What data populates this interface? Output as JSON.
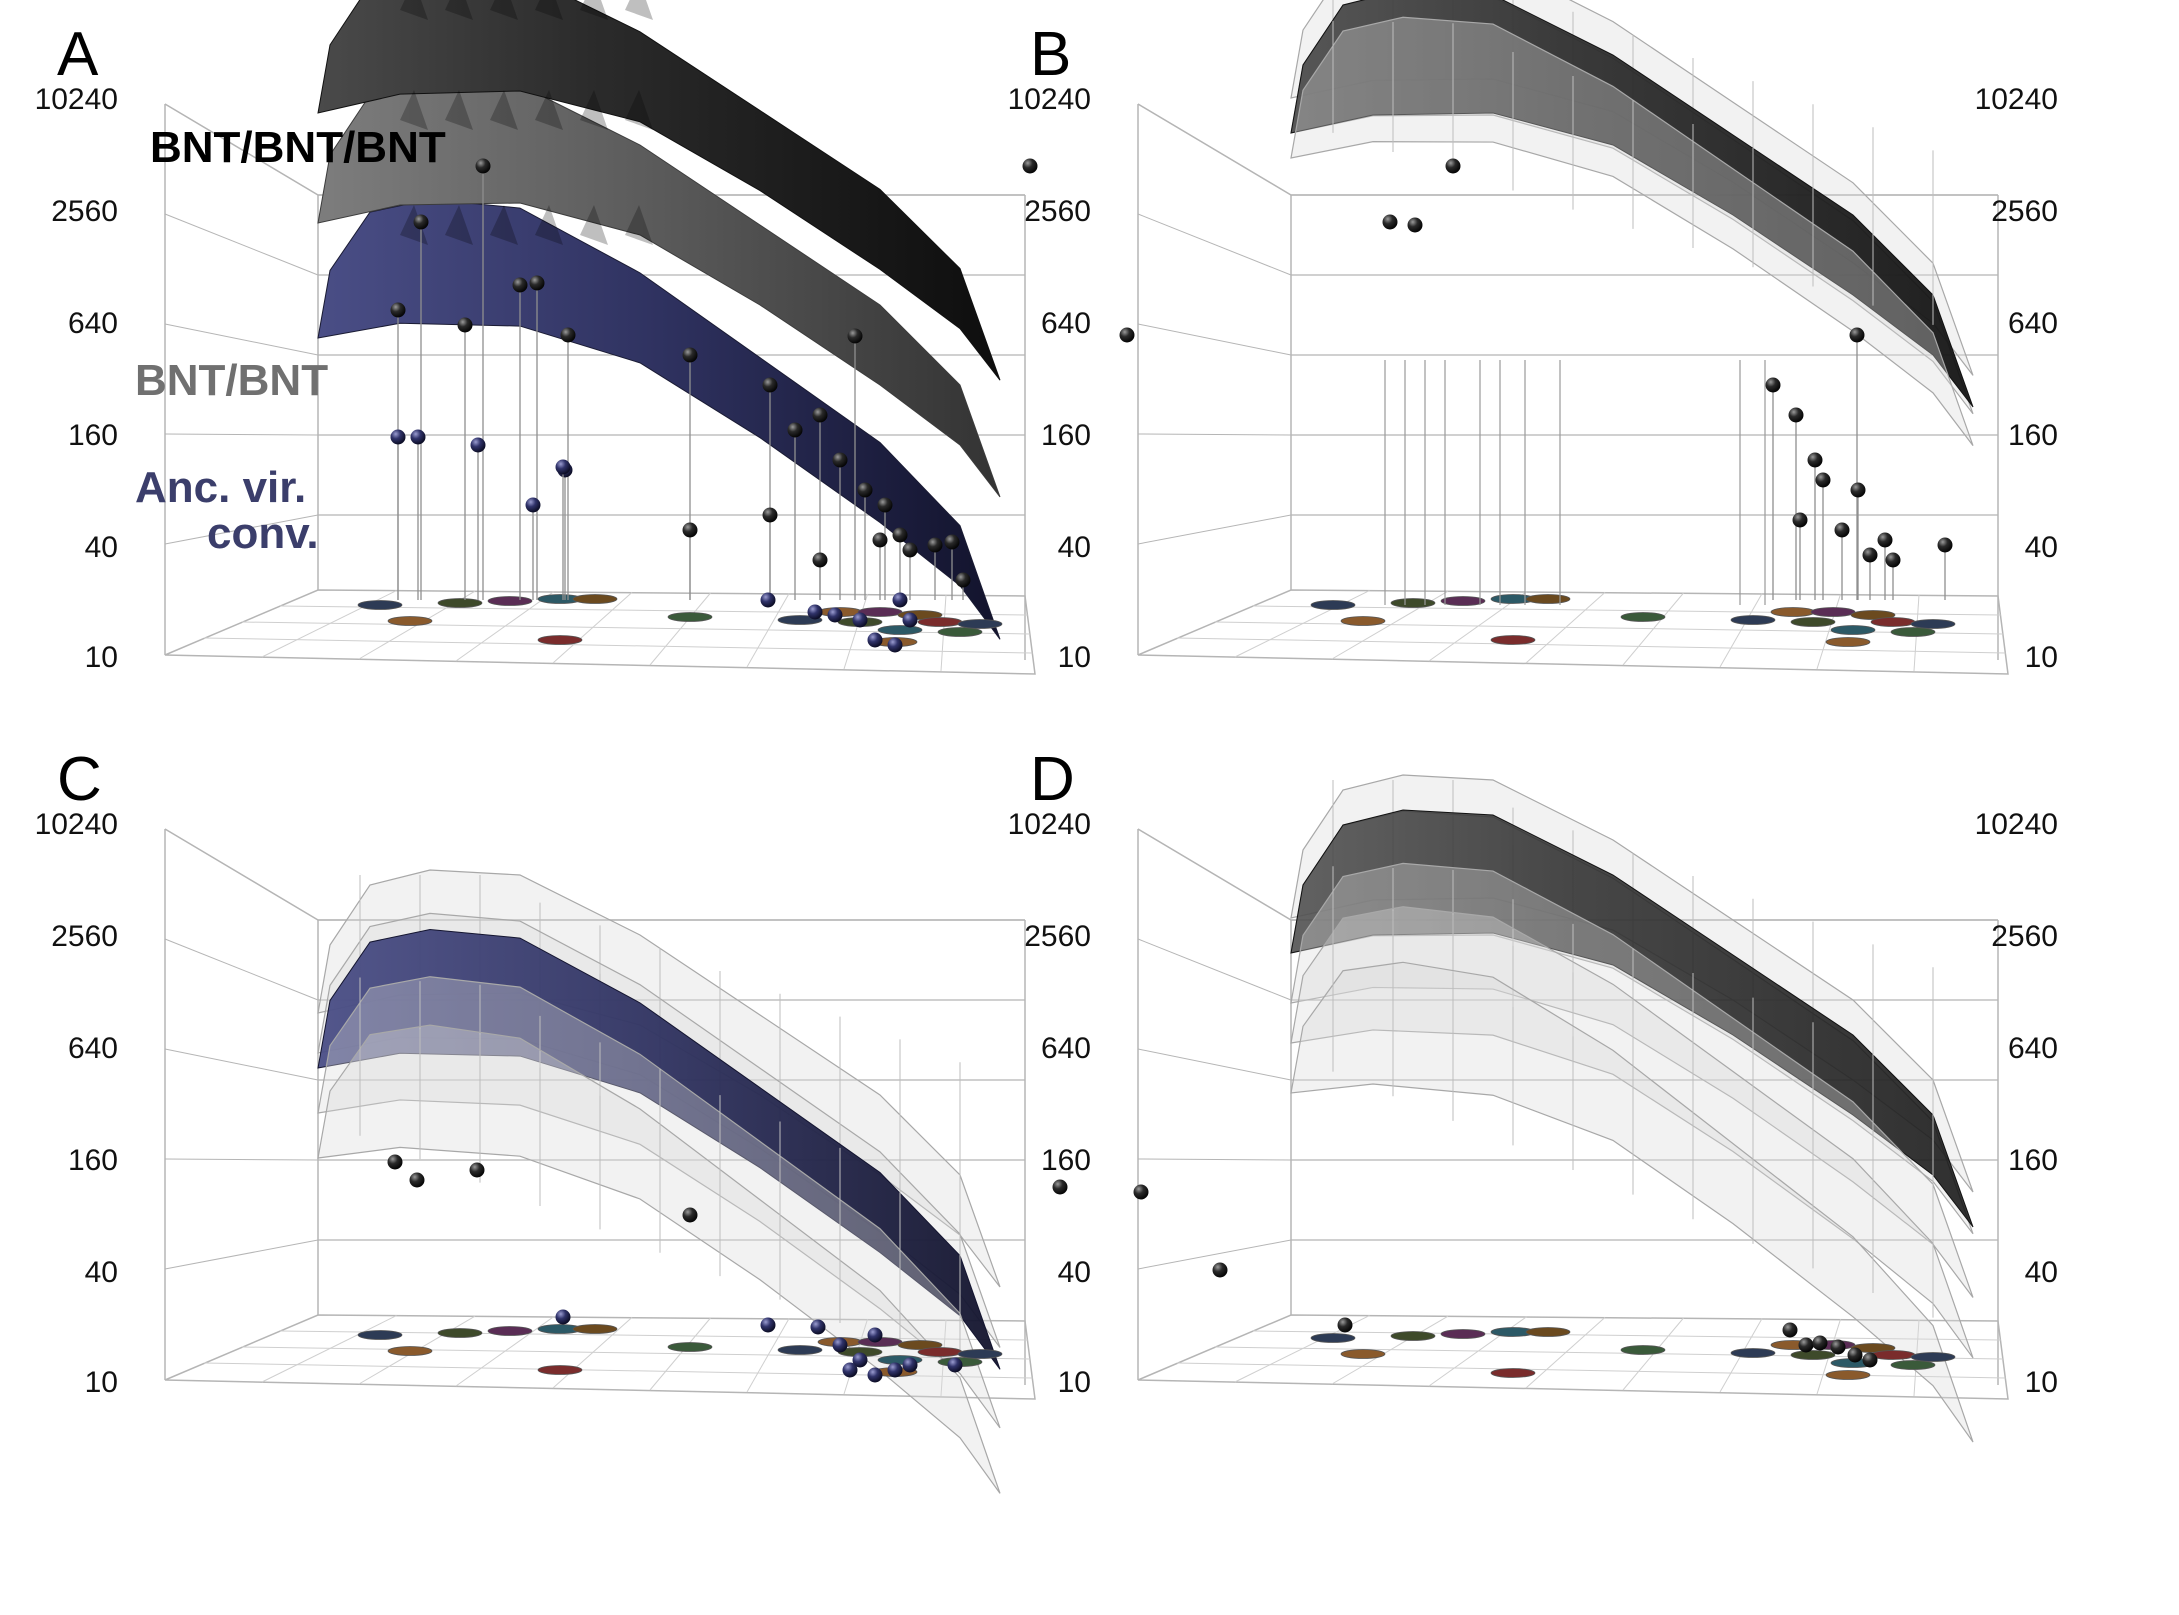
{
  "figure": {
    "panels": [
      {
        "letter": "A",
        "variant": "full"
      },
      {
        "letter": "B",
        "variant": "dark-bands"
      },
      {
        "letter": "C",
        "variant": "blue-bands"
      },
      {
        "letter": "D",
        "variant": "dark-bands-low"
      }
    ]
  },
  "chart_data": {
    "type": "surface",
    "title": "",
    "ylabel": "",
    "scale": "log2",
    "ylim": [
      10,
      10240
    ],
    "y_ticks": [
      "10",
      "40",
      "160",
      "640",
      "2560",
      "10240"
    ],
    "grid": true,
    "series": [
      {
        "name": "BNT/BNT/BNT",
        "color": "#1e1e1e",
        "label_color": "#000000"
      },
      {
        "name": "BNT/BNT",
        "color": "#5c5c5c",
        "label_color": "#707070"
      },
      {
        "name": "Anc. vir. conv.",
        "color": "#34365a",
        "label_color": "#3b3e6b",
        "label_lines": [
          "Anc. vir.",
          "conv."
        ]
      }
    ]
  },
  "colors": {
    "background": "#ffffff",
    "box": "#b5b5b5",
    "grid_floor": "#cfcfcf",
    "dark_surface": "#1e1e1e",
    "mid_surface": "#5c5c5c",
    "blue_surface": "#34365a",
    "band": "#d9d9d9"
  }
}
